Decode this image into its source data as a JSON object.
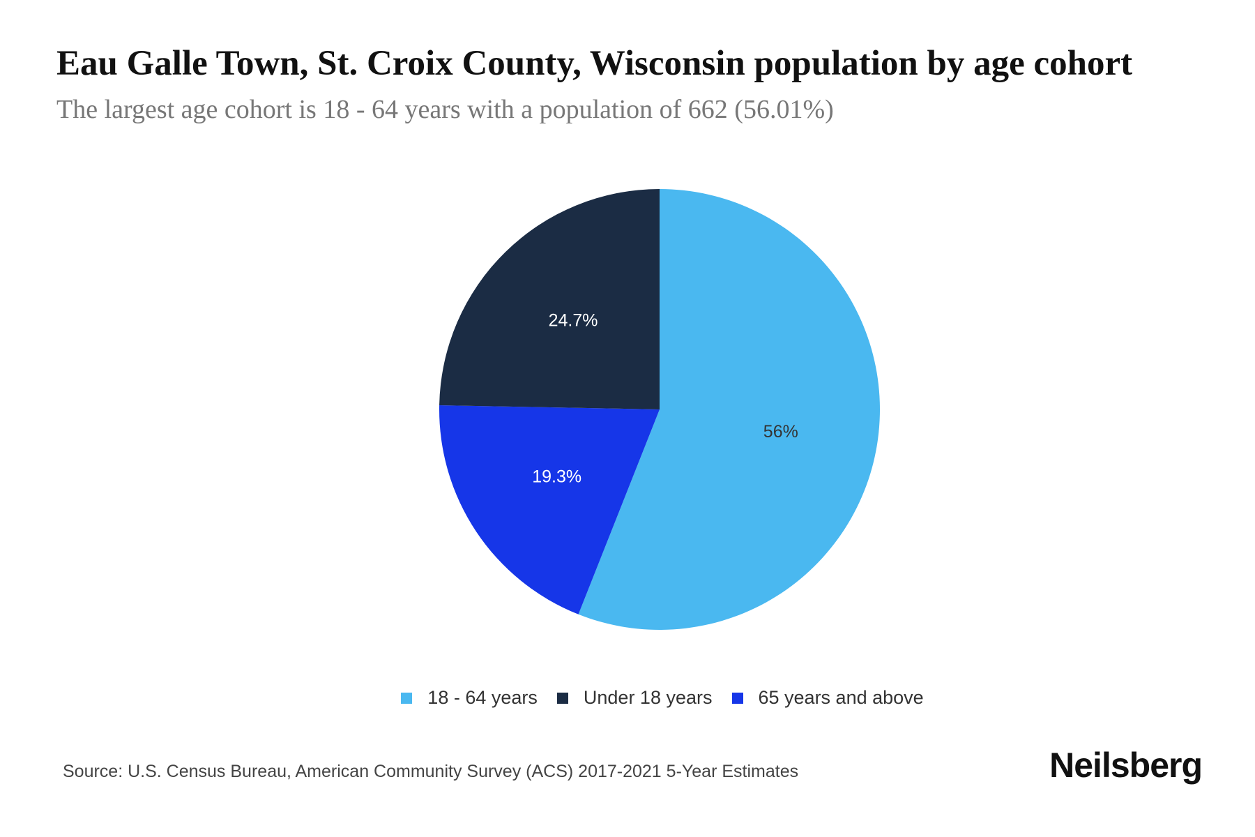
{
  "title": "Eau Galle Town, St. Croix County, Wisconsin population by age cohort",
  "subtitle": "The largest age cohort is 18 - 64 years with a population of 662 (56.01%)",
  "source": "Source: U.S. Census Bureau, American Community Survey (ACS) 2017-2021 5-Year Estimates",
  "logo": "Neilsberg",
  "chart_data": {
    "type": "pie",
    "title": "Eau Galle Town, St. Croix County, Wisconsin population by age cohort",
    "start_angle": "12 o'clock, clockwise",
    "legend_position": "bottom",
    "slices": [
      {
        "label": "18 - 64 years",
        "value": 56.01,
        "display": "56%",
        "color": "#4ab8f0",
        "text_color": "#333333"
      },
      {
        "label": "65 years and above",
        "value": 19.3,
        "display": "19.3%",
        "color": "#1636e8",
        "text_color": "#ffffff"
      },
      {
        "label": "Under 18 years",
        "value": 24.7,
        "display": "24.7%",
        "color": "#1b2c44",
        "text_color": "#ffffff"
      }
    ],
    "legend": [
      {
        "label": "18 - 64 years",
        "color": "#4ab8f0"
      },
      {
        "label": "Under 18 years",
        "color": "#1b2c44"
      },
      {
        "label": "65 years and above",
        "color": "#1636e8"
      }
    ]
  }
}
